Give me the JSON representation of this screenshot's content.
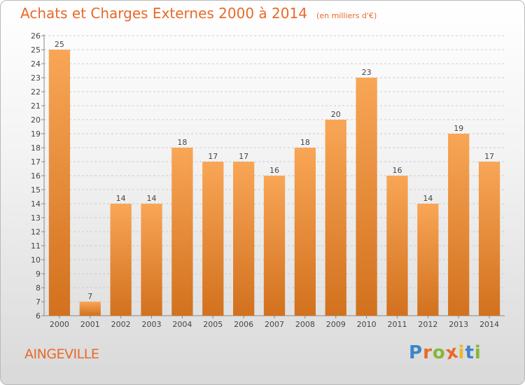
{
  "header": {
    "title": "Achats et Charges Externes 2000 à 2014",
    "subtitle": "(en milliers d'€)"
  },
  "footer": {
    "commune": "AINGEVILLE",
    "logo_letters": [
      "P",
      "r",
      "o",
      "x",
      "i",
      "t",
      "i"
    ],
    "logo_colors": [
      "#3b86c8",
      "#e8692a",
      "#86b63a",
      "#e8692a",
      "#e8b92a",
      "#3b86c8",
      "#86b63a"
    ]
  },
  "colors": {
    "bar_top": "#f8a656",
    "bar_bottom": "#d2711e",
    "title": "#e8692a",
    "grid": "#cccccc"
  },
  "chart_data": {
    "type": "bar",
    "title": "Achats et Charges Externes 2000 à 2014",
    "subtitle": "(en milliers d'€)",
    "categories": [
      "2000",
      "2001",
      "2002",
      "2003",
      "2004",
      "2005",
      "2006",
      "2007",
      "2008",
      "2009",
      "2010",
      "2011",
      "2012",
      "2013",
      "2014"
    ],
    "values": [
      25,
      7,
      14,
      14,
      18,
      17,
      17,
      16,
      18,
      20,
      23,
      16,
      14,
      19,
      17
    ],
    "ylim": [
      6,
      26
    ],
    "yticks": [
      6,
      7,
      8,
      9,
      10,
      11,
      12,
      13,
      14,
      15,
      16,
      17,
      18,
      19,
      20,
      21,
      22,
      23,
      24,
      25,
      26
    ],
    "data_labels": true,
    "grid": "horizontal dashed",
    "legend": "none"
  }
}
